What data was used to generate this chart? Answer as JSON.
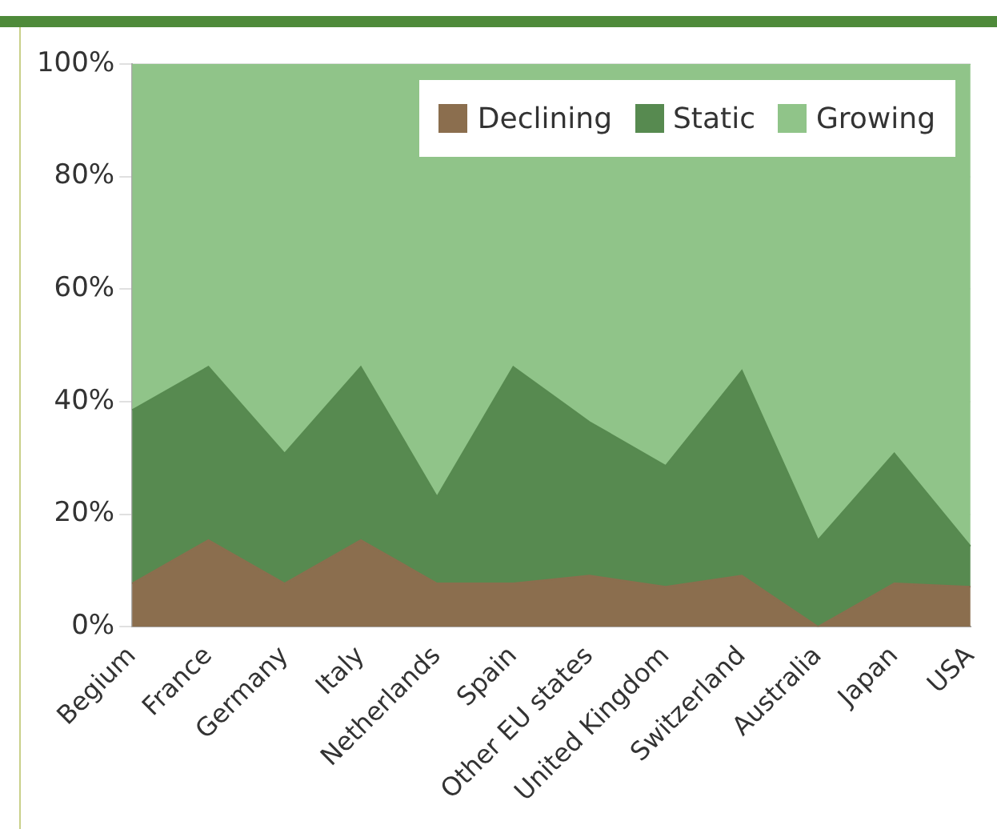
{
  "chart_data": {
    "type": "area",
    "stacked": true,
    "categories": [
      "Begium",
      "France",
      "Germany",
      "Italy",
      "Netherlands",
      "Spain",
      "Other EU states",
      "United Kingdom",
      "Switzerland",
      "Australia",
      "Japan",
      "USA"
    ],
    "series": [
      {
        "name": "Declining",
        "color": "#8b6e4e",
        "values": [
          7.7,
          15.4,
          7.7,
          15.4,
          7.7,
          7.7,
          9.1,
          7.1,
          9.1,
          0,
          7.7,
          7.1
        ]
      },
      {
        "name": "Static",
        "color": "#578a50",
        "values": [
          30.8,
          30.8,
          23.1,
          30.8,
          15.4,
          38.5,
          27.3,
          21.5,
          36.4,
          15.4,
          23.1,
          7.2
        ]
      },
      {
        "name": "Growing",
        "color": "#90c489",
        "values": [
          61.5,
          53.8,
          69.2,
          53.8,
          76.9,
          53.8,
          63.6,
          71.4,
          54.5,
          84.6,
          69.2,
          85.7
        ]
      }
    ],
    "ylim": [
      0,
      100
    ],
    "yticks": [
      {
        "value": 0,
        "label": "0%"
      },
      {
        "value": 20,
        "label": "20%"
      },
      {
        "value": 40,
        "label": "40%"
      },
      {
        "value": 60,
        "label": "60%"
      },
      {
        "value": 80,
        "label": "80%"
      },
      {
        "value": 100,
        "label": "100%"
      }
    ],
    "grid": "y",
    "legend": "top right"
  }
}
